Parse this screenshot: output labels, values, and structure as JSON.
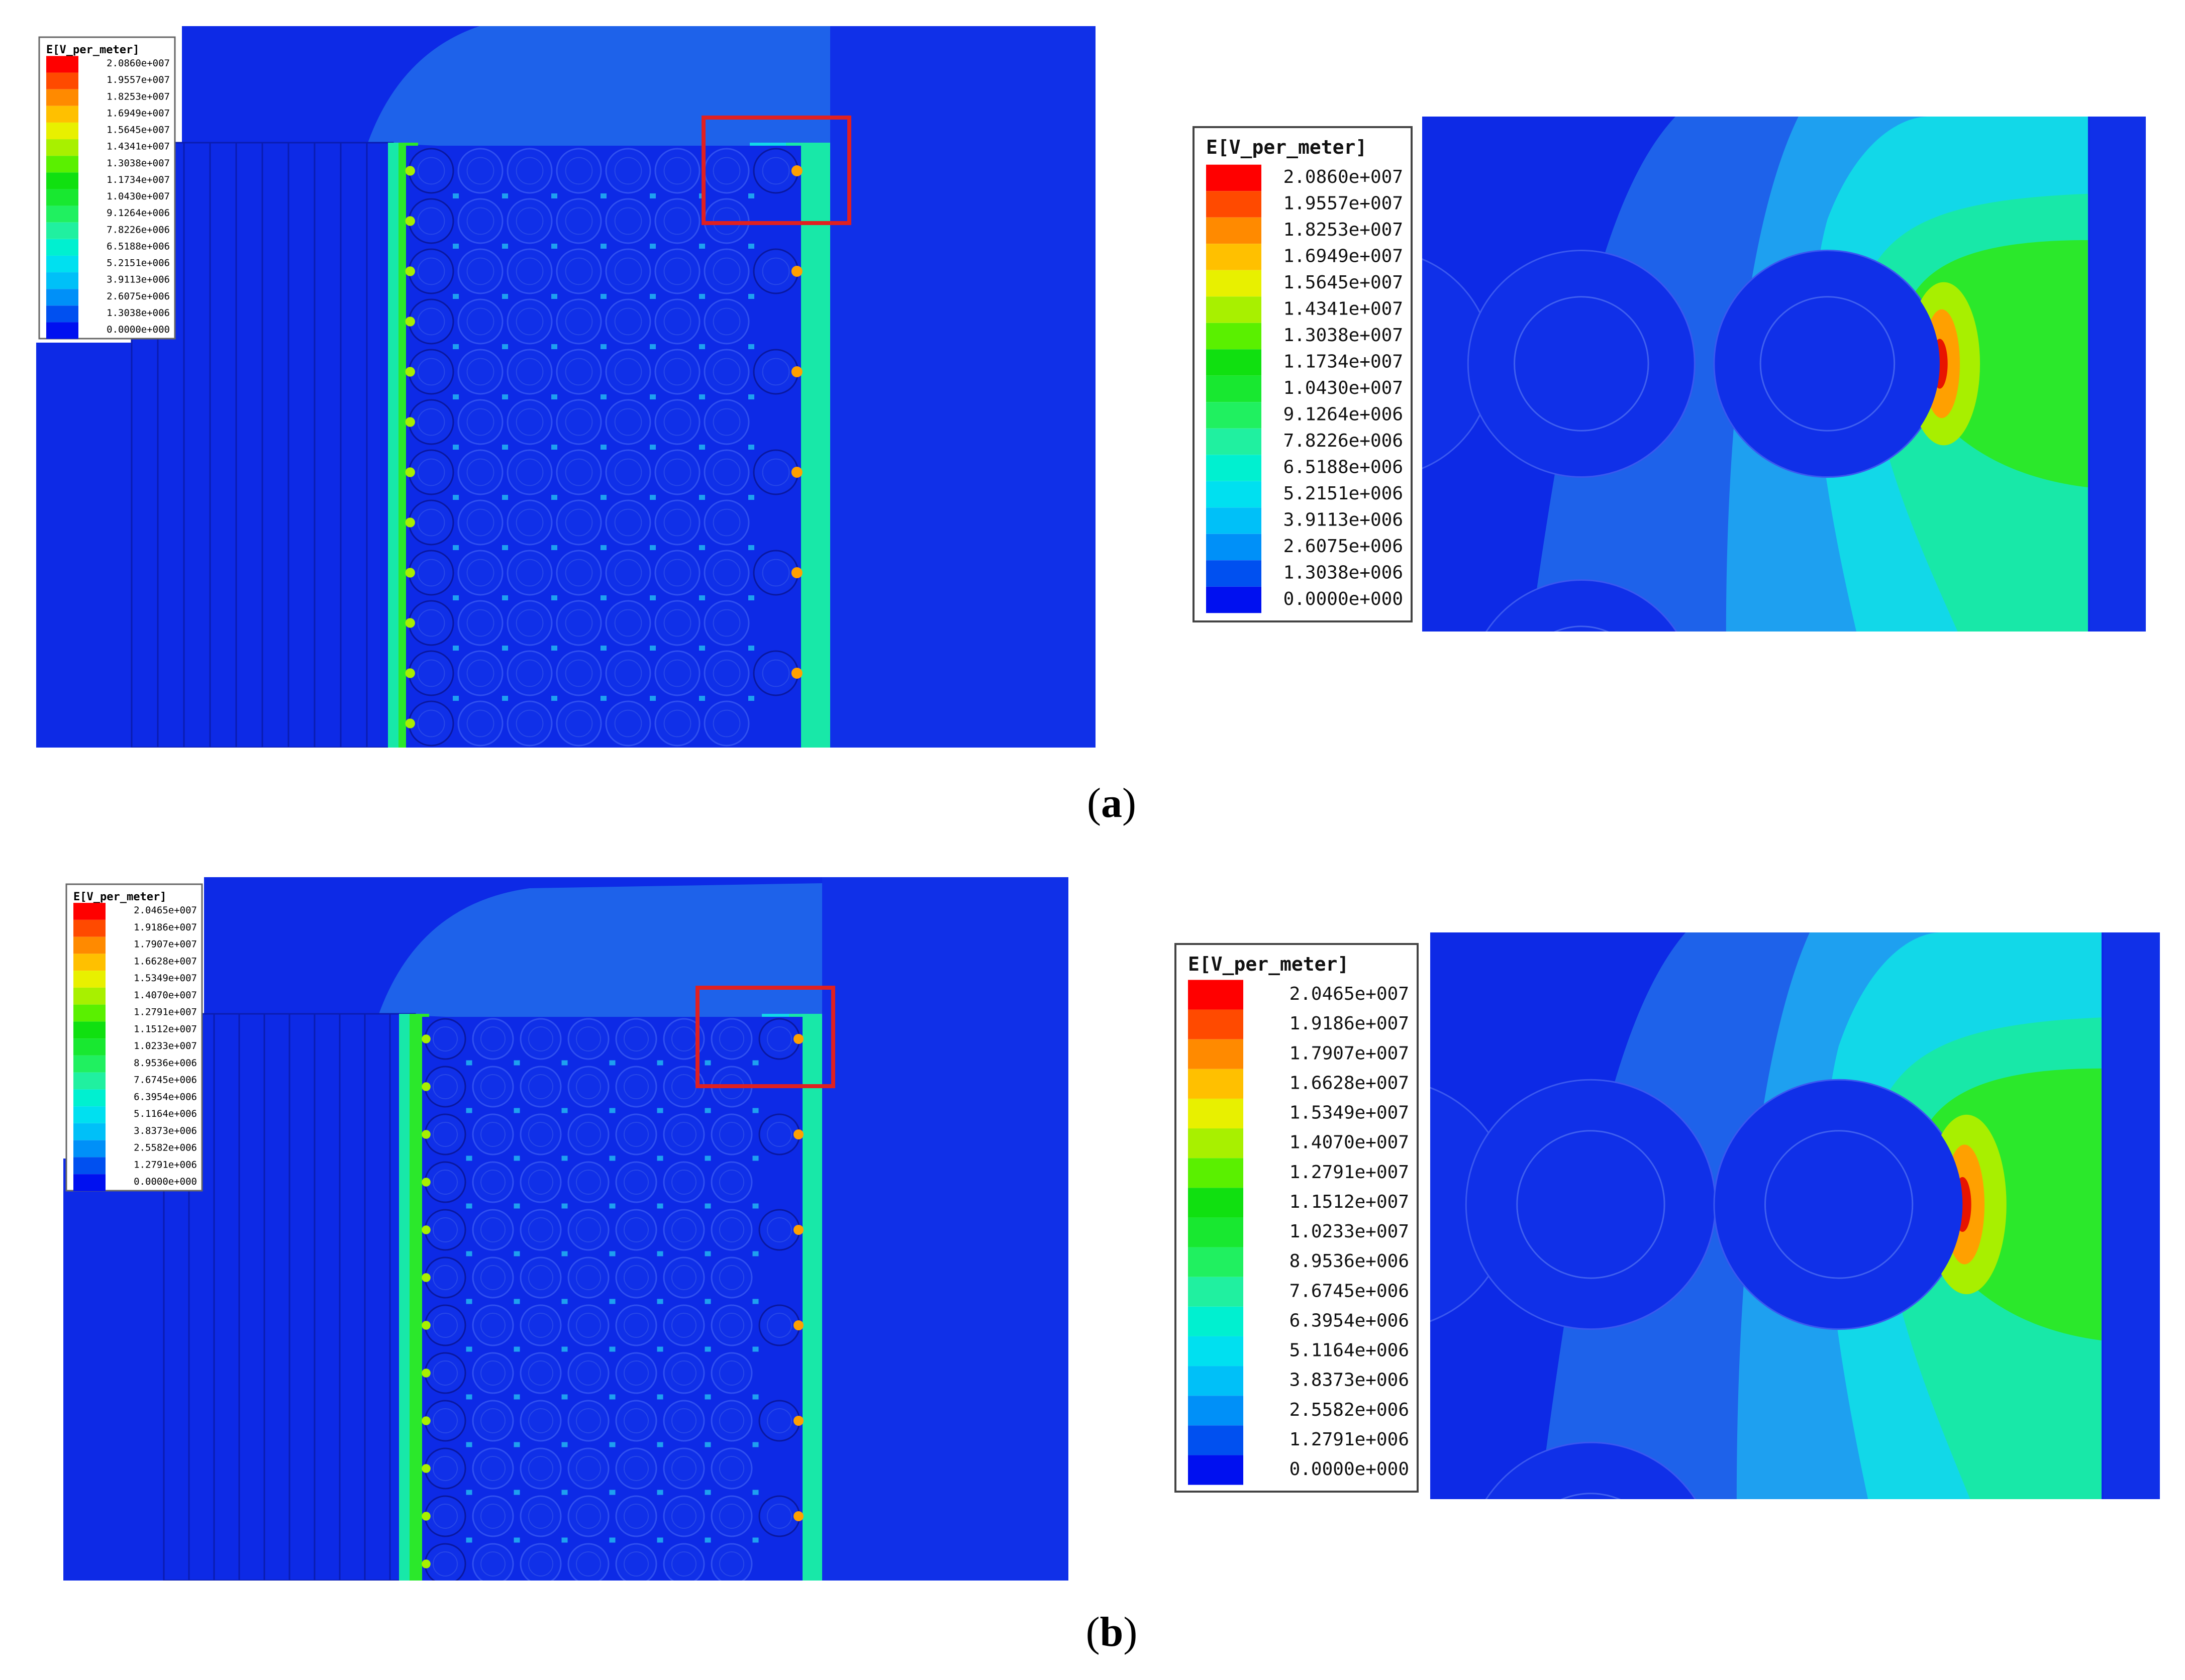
{
  "figures": [
    {
      "caption": "a",
      "legend_title": "E[V_per_meter]",
      "legend_values": [
        "2.0860e+007",
        "1.9557e+007",
        "1.8253e+007",
        "1.6949e+007",
        "1.5645e+007",
        "1.4341e+007",
        "1.3038e+007",
        "1.1734e+007",
        "1.0430e+007",
        "9.1264e+006",
        "7.8226e+006",
        "6.5188e+006",
        "5.2151e+006",
        "3.9113e+006",
        "2.6075e+006",
        "1.3038e+006",
        "0.0000e+000"
      ]
    },
    {
      "caption": "b",
      "legend_title": "E[V_per_meter]",
      "legend_values": [
        "2.0465e+007",
        "1.9186e+007",
        "1.7907e+007",
        "1.6628e+007",
        "1.5349e+007",
        "1.4070e+007",
        "1.2791e+007",
        "1.1512e+007",
        "1.0233e+007",
        "8.9536e+006",
        "7.6745e+006",
        "6.3954e+006",
        "5.1164e+006",
        "3.8373e+006",
        "2.5582e+006",
        "1.2791e+006",
        "0.0000e+000"
      ]
    }
  ],
  "colorscale": [
    "#ff0000",
    "#ff4a00",
    "#ff8a00",
    "#ffc000",
    "#e8f000",
    "#a8f000",
    "#5af000",
    "#10e010",
    "#18e830",
    "#20f060",
    "#20f0a0",
    "#00f0d0",
    "#00e0f0",
    "#00c0f8",
    "#0090f8",
    "#0050f0",
    "#0010f0"
  ],
  "field_colors": {
    "background": "#0d2ae6",
    "conductor": "#1030e8",
    "halo_1": "#1e62ea",
    "halo_2": "#1ea0f0",
    "halo_3": "#12d8e8",
    "halo_4": "#18e8a8",
    "halo_5": "#2be82b",
    "hot_1": "#a8ef00",
    "hot_2": "#ffa000",
    "hot_3": "#e81400",
    "highlight_box": "#e02020"
  }
}
